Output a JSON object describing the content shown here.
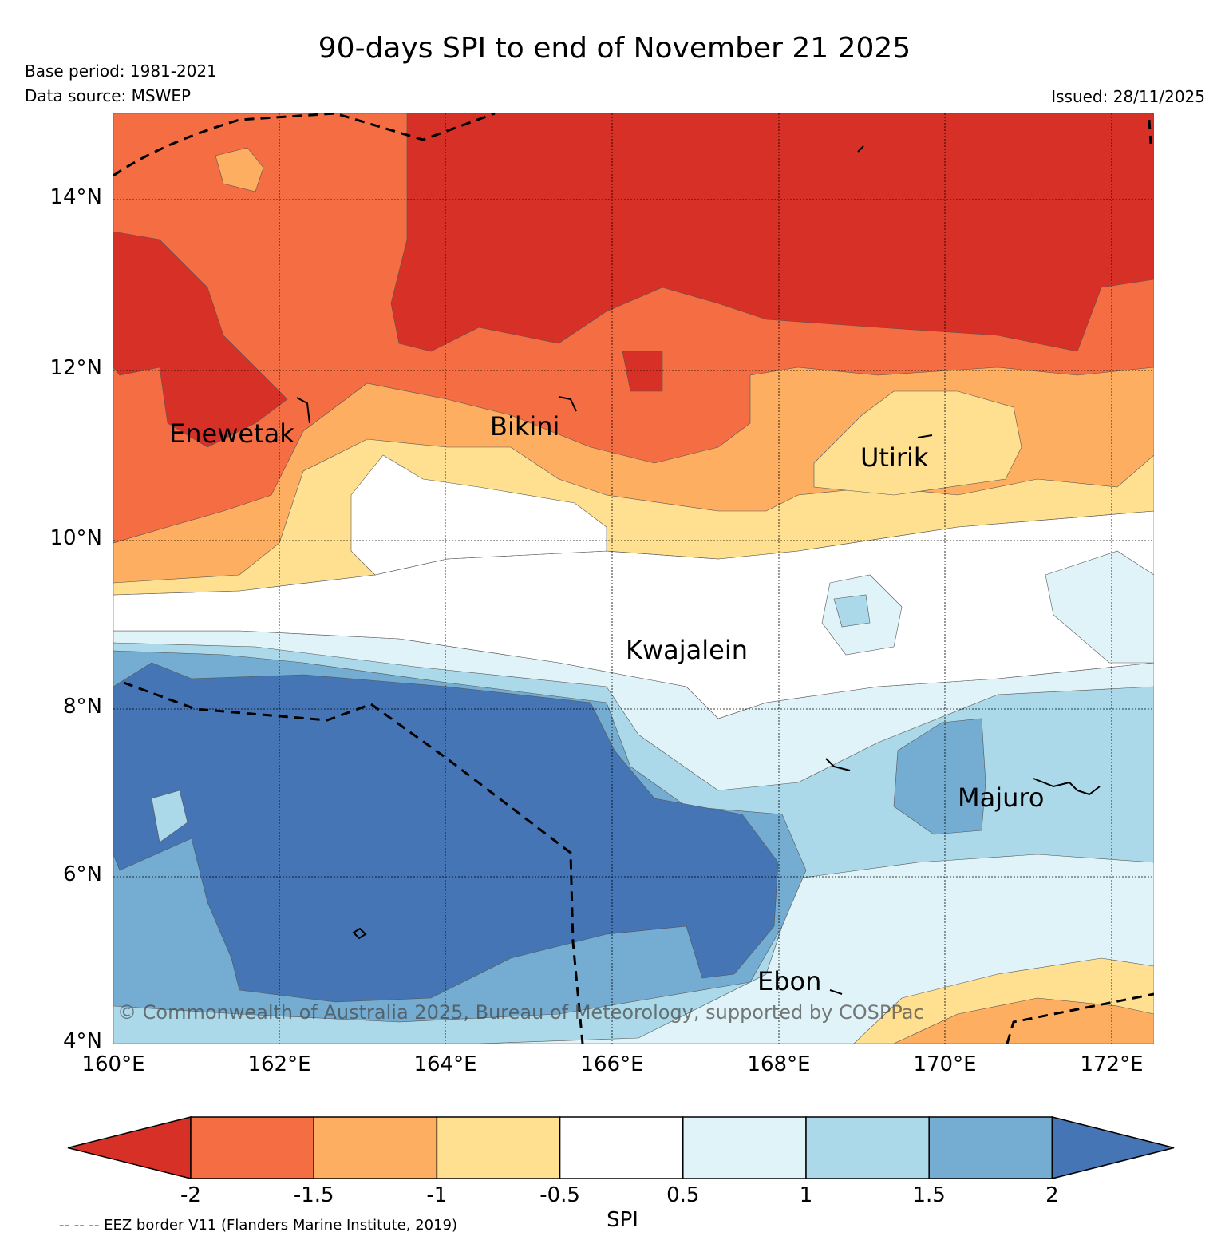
{
  "title": "90-days SPI to end of November 21 2025",
  "base_period": "Base period: 1981-2021",
  "data_source": "Data source: MSWEP",
  "issued": "Issued: 28/11/2025",
  "map": {
    "lon_range": [
      160,
      172.5
    ],
    "lat_range": [
      4,
      15
    ],
    "lat_ticks": [
      "14°N",
      "12°N",
      "10°N",
      "8°N",
      "6°N",
      "4°N"
    ],
    "lon_ticks": [
      "160°E",
      "162°E",
      "164°E",
      "166°E",
      "168°E",
      "170°E",
      "172°E"
    ],
    "places": [
      {
        "id": "enewetak",
        "name": "Enewetak"
      },
      {
        "id": "bikini",
        "name": "Bikini"
      },
      {
        "id": "utirik",
        "name": "Utirik"
      },
      {
        "id": "kwajalein",
        "name": "Kwajalein"
      },
      {
        "id": "majuro",
        "name": "Majuro"
      },
      {
        "id": "ebon",
        "name": "Ebon"
      }
    ],
    "copyright": "© Commonwealth of Australia 2025, Bureau of Meteorology, supported by COSPPac",
    "spi_pattern": [
      {
        "region": "north (about 12.5–15°N, 164–172.5°E)",
        "spi_class": "< -2"
      },
      {
        "region": "northwest (about 11–15°N, 160–164°E)",
        "spi_class": "-2 to -1.5"
      },
      {
        "region": "band near 11–12°N",
        "spi_class": "-1.5 to -0.5"
      },
      {
        "region": "band near 8.5–10°N",
        "spi_class": "-0.5 to 0.5"
      },
      {
        "region": "southwest (about 4.5–8°N, 160–168°E)",
        "spi_class": "> 2"
      },
      {
        "region": "southeast (about 5–8°N, 168–172.5°E)",
        "spi_class": "0.5 to 1.5"
      },
      {
        "region": "far southeast (about 4–5°N, 169–172.5°E)",
        "spi_class": "-1.5 to -0.5"
      }
    ]
  },
  "colorbar": {
    "label": "SPI",
    "ticks": [
      "-2",
      "-1.5",
      "-1",
      "-0.5",
      "0.5",
      "1",
      "1.5",
      "2"
    ],
    "colors": [
      "#d73027",
      "#f46d43",
      "#fdae61",
      "#fee090",
      "#ffffff",
      "#e0f3f8",
      "#abd9e9",
      "#74add1",
      "#4575b4"
    ]
  },
  "eez_note": "-- -- -- EEZ border V11 (Flanders Marine Institute, 2019)"
}
